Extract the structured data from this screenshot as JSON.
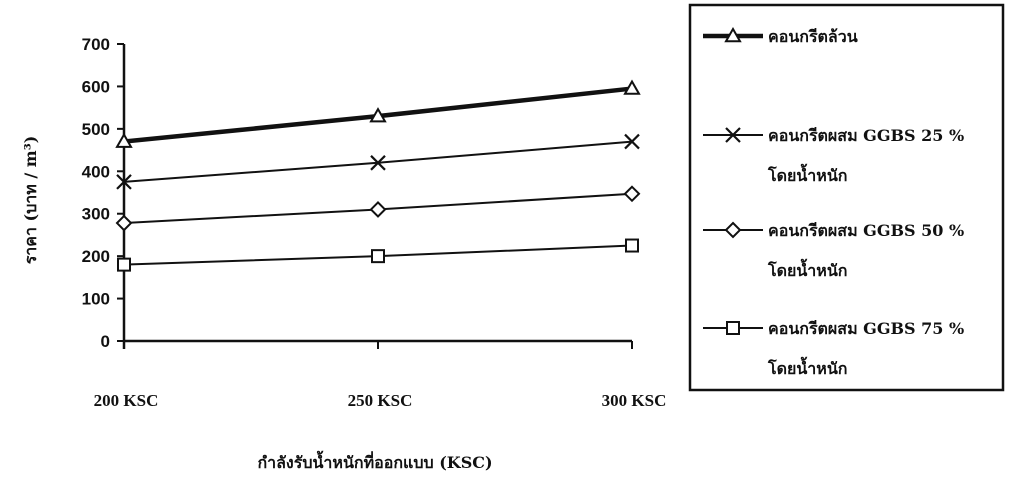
{
  "chart_data": {
    "type": "line",
    "categories": [
      "200 KSC",
      "250 KSC",
      "300 KSC"
    ],
    "series": [
      {
        "name": "คอนกรีตล้วน",
        "marker": "triangle",
        "line_width": "thick",
        "values": [
          470,
          530,
          595
        ]
      },
      {
        "name": "คอนกรีตผสม GGBS 25 % โดยน้ำหนัก",
        "marker": "x",
        "line_width": "thin",
        "values": [
          375,
          420,
          470
        ]
      },
      {
        "name": "คอนกรีตผสม GGBS 50 % โดยน้ำหนัก",
        "marker": "diamond",
        "line_width": "thin",
        "values": [
          278,
          310,
          347
        ]
      },
      {
        "name": "คอนกรีตผสม GGBS 75 % โดยน้ำหนัก",
        "marker": "square",
        "line_width": "thin",
        "values": [
          180,
          200,
          225
        ]
      }
    ],
    "legend_lines": [
      [
        "คอนกรีตล้วน"
      ],
      [
        "คอนกรีตผสม GGBS 25 %",
        "โดยน้ำหนัก"
      ],
      [
        "คอนกรีตผสม GGBS 50 %",
        "โดยน้ำหนัก"
      ],
      [
        "คอนกรีตผสม GGBS 75 %",
        "โดยน้ำหนัก"
      ]
    ],
    "yticks": [
      "0",
      "100",
      "200",
      "300",
      "400",
      "500",
      "600",
      "700"
    ],
    "ylim": [
      0,
      700
    ],
    "xlabel": "กำลังรับน้ำหนักที่ออกแบบ (KSC)",
    "ylabel": "ราคา (บาท / m³)",
    "legend_position": "right",
    "grid": false,
    "colors": {
      "line": "#111111",
      "background": "#ffffff"
    }
  }
}
